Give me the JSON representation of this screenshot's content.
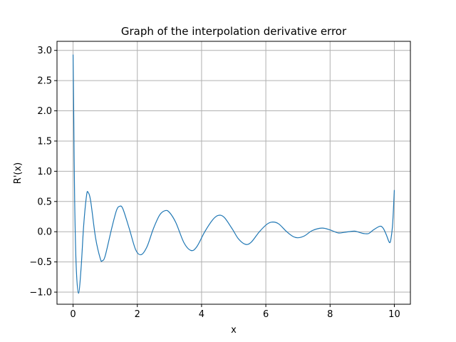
{
  "chart_data": {
    "type": "line",
    "title": "Graph of the interpolation derivative error",
    "xlabel": "x",
    "ylabel": "R'(x)",
    "xlim": [
      -0.5,
      10.5
    ],
    "ylim": [
      -1.2,
      3.15
    ],
    "grid": true,
    "color": "#1f77b4",
    "xticks": [
      {
        "value": 0,
        "label": "0"
      },
      {
        "value": 2,
        "label": "2"
      },
      {
        "value": 4,
        "label": "4"
      },
      {
        "value": 6,
        "label": "6"
      },
      {
        "value": 8,
        "label": "8"
      },
      {
        "value": 10,
        "label": "10"
      }
    ],
    "yticks": [
      {
        "value": -1.0,
        "label": "−1.0"
      },
      {
        "value": -0.5,
        "label": "−0.5"
      },
      {
        "value": 0.0,
        "label": "0.0"
      },
      {
        "value": 0.5,
        "label": "0.5"
      },
      {
        "value": 1.0,
        "label": "1.0"
      },
      {
        "value": 1.5,
        "label": "1.5"
      },
      {
        "value": 2.0,
        "label": "2.0"
      },
      {
        "value": 2.5,
        "label": "2.5"
      },
      {
        "value": 3.0,
        "label": "3.0"
      }
    ],
    "series": [
      {
        "points": [
          [
            0.0,
            2.93
          ],
          [
            0.02,
            2.0
          ],
          [
            0.05,
            0.5
          ],
          [
            0.1,
            -0.6
          ],
          [
            0.17,
            -1.02
          ],
          [
            0.25,
            -0.6
          ],
          [
            0.33,
            0.1
          ],
          [
            0.42,
            0.6
          ],
          [
            0.47,
            0.65
          ],
          [
            0.55,
            0.5
          ],
          [
            0.7,
            -0.1
          ],
          [
            0.85,
            -0.45
          ],
          [
            0.91,
            -0.48
          ],
          [
            1.0,
            -0.4
          ],
          [
            1.2,
            0.05
          ],
          [
            1.35,
            0.35
          ],
          [
            1.45,
            0.42
          ],
          [
            1.55,
            0.38
          ],
          [
            1.75,
            0.05
          ],
          [
            1.95,
            -0.3
          ],
          [
            2.12,
            -0.38
          ],
          [
            2.3,
            -0.25
          ],
          [
            2.5,
            0.05
          ],
          [
            2.7,
            0.28
          ],
          [
            2.87,
            0.35
          ],
          [
            3.0,
            0.32
          ],
          [
            3.2,
            0.15
          ],
          [
            3.45,
            -0.18
          ],
          [
            3.67,
            -0.31
          ],
          [
            3.85,
            -0.25
          ],
          [
            4.1,
            0.0
          ],
          [
            4.35,
            0.2
          ],
          [
            4.52,
            0.27
          ],
          [
            4.7,
            0.24
          ],
          [
            4.95,
            0.05
          ],
          [
            5.15,
            -0.12
          ],
          [
            5.37,
            -0.21
          ],
          [
            5.55,
            -0.17
          ],
          [
            5.8,
            0.0
          ],
          [
            6.05,
            0.13
          ],
          [
            6.22,
            0.16
          ],
          [
            6.4,
            0.13
          ],
          [
            6.65,
            0.0
          ],
          [
            6.85,
            -0.08
          ],
          [
            7.0,
            -0.1
          ],
          [
            7.2,
            -0.07
          ],
          [
            7.45,
            0.02
          ],
          [
            7.75,
            0.06
          ],
          [
            8.0,
            0.03
          ],
          [
            8.25,
            -0.02
          ],
          [
            8.45,
            -0.01
          ],
          [
            8.75,
            0.01
          ],
          [
            8.9,
            -0.01
          ],
          [
            9.05,
            -0.03
          ],
          [
            9.2,
            -0.03
          ],
          [
            9.35,
            0.03
          ],
          [
            9.55,
            0.09
          ],
          [
            9.65,
            0.06
          ],
          [
            9.75,
            -0.05
          ],
          [
            9.85,
            -0.18
          ],
          [
            9.9,
            -0.1
          ],
          [
            9.95,
            0.15
          ],
          [
            10.0,
            0.69
          ]
        ]
      }
    ]
  }
}
